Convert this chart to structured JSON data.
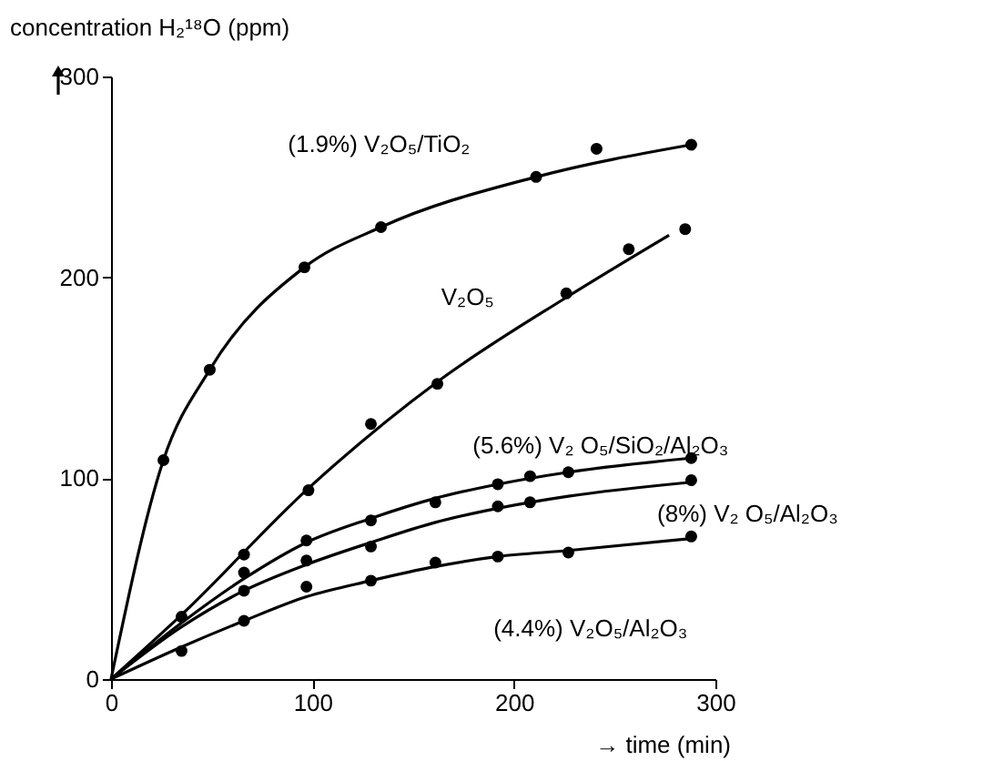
{
  "chart_data": {
    "type": "scatter",
    "xlabel": "→ time (min)",
    "ylabel": "concentration H₂¹⁸O (ppm)",
    "xlim": [
      0,
      300
    ],
    "ylim": [
      0,
      300
    ],
    "xticks": [
      0,
      100,
      200,
      300
    ],
    "yticks": [
      0,
      100,
      200,
      300
    ],
    "grid": false,
    "marker": "circle",
    "series": [
      {
        "name": "(1.9%) V₂O₅/TiO₂",
        "color": "#000000",
        "x": [
          26,
          49,
          96,
          134,
          211,
          241,
          288
        ],
        "values": [
          109,
          154,
          205,
          225,
          250,
          264,
          266
        ]
      },
      {
        "name": "V₂O₅",
        "color": "#000000",
        "x": [
          35,
          66,
          98,
          129,
          162,
          226,
          257,
          285
        ],
        "values": [
          31,
          62,
          94,
          127,
          147,
          192,
          214,
          224
        ]
      },
      {
        "name": "(5.6%) V₂ O₅/SiO₂/Al₂O₃",
        "color": "#000000",
        "x": [
          66,
          97,
          129,
          161,
          192,
          208,
          227,
          288
        ],
        "values": [
          53,
          69,
          79,
          88,
          97,
          101,
          103,
          110
        ]
      },
      {
        "name": "(8%) V₂ O₅/Al₂O₃",
        "color": "#000000",
        "x": [
          66,
          97,
          129,
          192,
          208,
          288
        ],
        "values": [
          44,
          59,
          66,
          86,
          88,
          99
        ]
      },
      {
        "name": "(4.4%) V₂O₅/Al₂O₃",
        "color": "#000000",
        "x": [
          35,
          66,
          97,
          129,
          161,
          192,
          227,
          288
        ],
        "values": [
          14,
          29,
          46,
          49,
          58,
          61,
          63,
          71
        ]
      },
      {
        "type": "line",
        "marker": "none",
        "color": "#000000",
        "x": [
          0,
          26,
          49,
          96,
          134,
          211,
          288
        ],
        "values": [
          0,
          109,
          154,
          205,
          225,
          250,
          266
        ]
      },
      {
        "type": "line",
        "marker": "none",
        "color": "#000000",
        "x": [
          0,
          35,
          98,
          162,
          226,
          277
        ],
        "values": [
          0,
          32,
          95,
          148,
          190,
          221
        ]
      },
      {
        "type": "line",
        "marker": "none",
        "color": "#000000",
        "x": [
          0,
          35,
          66,
          97,
          129,
          161,
          192,
          227,
          288
        ],
        "values": [
          0,
          28,
          50,
          68,
          80,
          90,
          97,
          103,
          110
        ]
      },
      {
        "type": "line",
        "marker": "none",
        "color": "#000000",
        "x": [
          0,
          35,
          66,
          97,
          129,
          161,
          192,
          227,
          288
        ],
        "values": [
          0,
          26,
          44,
          57,
          68,
          78,
          85,
          91,
          98
        ]
      },
      {
        "type": "line",
        "marker": "none",
        "color": "#000000",
        "x": [
          0,
          35,
          66,
          97,
          129,
          161,
          192,
          227,
          288
        ],
        "values": [
          0,
          16,
          29,
          41,
          49,
          56,
          61,
          64,
          70
        ]
      }
    ]
  }
}
